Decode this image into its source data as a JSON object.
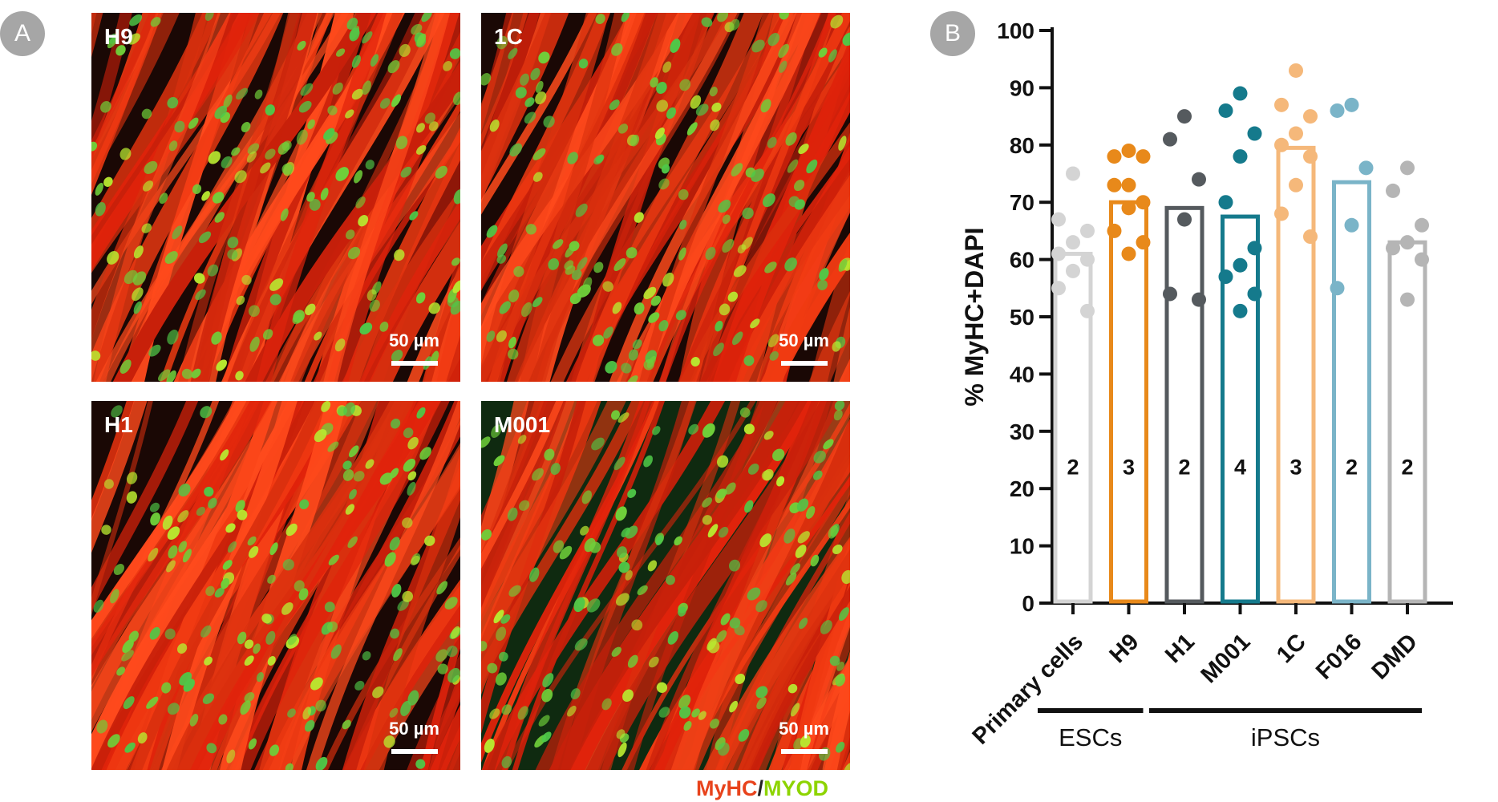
{
  "panel_a": {
    "badge": "A",
    "images": [
      {
        "label": "H9",
        "scale": "50 µm"
      },
      {
        "label": "1C",
        "scale": "50 µm"
      },
      {
        "label": "H1",
        "scale": "50 µm"
      },
      {
        "label": "M001",
        "scale": "50 µm"
      }
    ],
    "legend": {
      "part1": "MyHC",
      "sep": "/",
      "part2": "MYOD",
      "color1": "#e8431c",
      "color2": "#8dd400"
    }
  },
  "panel_b": {
    "badge": "B"
  },
  "chart_data": {
    "type": "bar",
    "ylabel": "% MyHC+DAPI",
    "ylim": [
      0,
      100
    ],
    "yticks": [
      "0",
      "10",
      "20",
      "30",
      "40",
      "50",
      "60",
      "70",
      "80",
      "90",
      "100"
    ],
    "categories": [
      "Primary cells",
      "H9",
      "H1",
      "M001",
      "1C",
      "F016",
      "DMD"
    ],
    "values": [
      61,
      70,
      69,
      67.5,
      79.5,
      73.5,
      63
    ],
    "n_labels": [
      "2",
      "3",
      "2",
      "4",
      "3",
      "2",
      "2"
    ],
    "colors": [
      "#d4d4d4",
      "#e8891a",
      "#555a5e",
      "#157a8c",
      "#f5b87a",
      "#7ab4c8",
      "#b5b5b5"
    ],
    "points": [
      [
        75,
        67,
        65,
        63,
        61,
        60,
        58,
        55,
        51
      ],
      [
        79,
        78,
        78,
        73,
        73,
        70,
        69,
        65,
        63,
        61
      ],
      [
        85,
        81,
        74,
        67,
        54,
        53
      ],
      [
        89,
        86,
        82,
        78,
        70,
        62,
        59,
        57,
        54,
        51
      ],
      [
        93,
        87,
        85,
        82,
        80,
        78,
        73,
        68,
        64
      ],
      [
        87,
        86,
        76,
        66,
        55
      ],
      [
        76,
        72,
        66,
        63,
        62,
        60,
        53
      ]
    ],
    "groups": [
      {
        "label": "ESCs",
        "from": 0,
        "to": 1
      },
      {
        "label": "iPSCs",
        "from": 2,
        "to": 6
      }
    ]
  }
}
